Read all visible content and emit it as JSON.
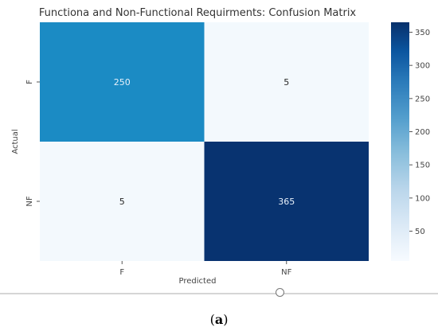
{
  "chart_data": {
    "type": "heatmap",
    "title": "Functiona and Non-Functional Requirments: Confusion Matrix",
    "xlabel": "Predicted",
    "ylabel": "Actual",
    "x_categories": [
      "F",
      "NF"
    ],
    "y_categories": [
      "F",
      "NF"
    ],
    "values": [
      [
        250,
        5
      ],
      [
        5,
        365
      ]
    ],
    "colormap": "Blues",
    "vmin": 5,
    "vmax": 365,
    "colorbar_ticks": [
      50,
      100,
      150,
      200,
      250,
      300,
      350
    ],
    "colors": {
      "cell_250": "#1b8bc4",
      "cell_5": "#f3f9fd",
      "cell_365": "#083370",
      "light_text": "#e8f1fa",
      "dark_text": "#262626"
    }
  },
  "caption": {
    "open": "(",
    "letter": "a",
    "close": ")"
  }
}
